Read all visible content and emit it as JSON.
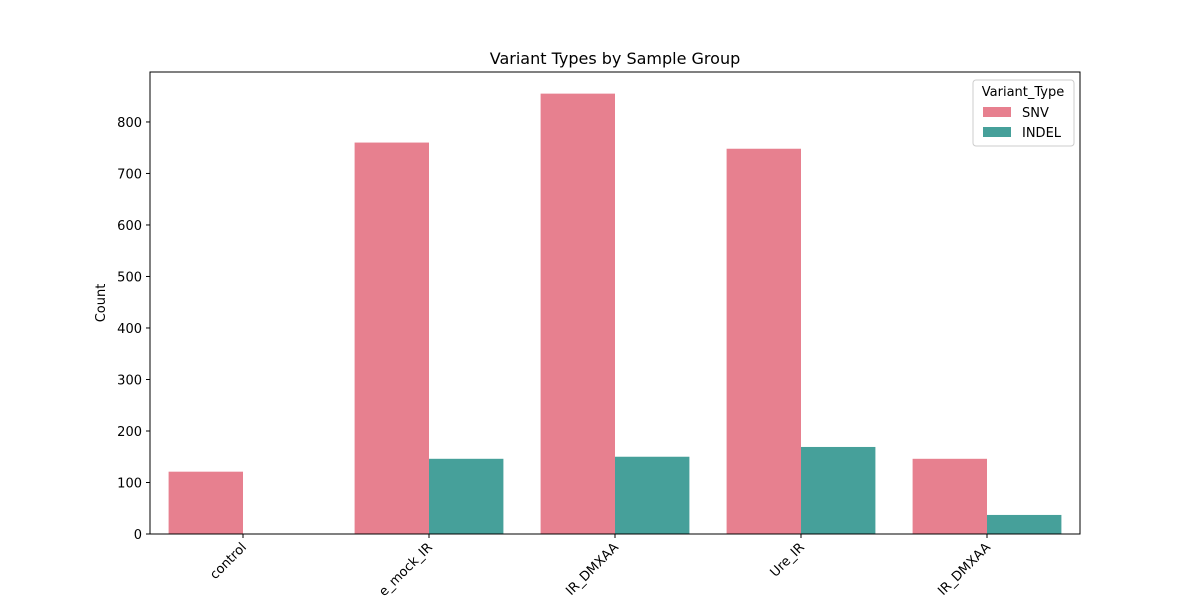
{
  "chart_data": {
    "type": "bar",
    "title": "Variant Types by Sample Group",
    "xlabel": "",
    "ylabel": "Count",
    "categories": [
      "control",
      "Ure_mock_IR",
      "Ure_IR_DMXAA",
      "Ure_IR",
      "Ure_IR_DMXAA"
    ],
    "visible_category_labels": [
      "control",
      "e_mock_IR",
      "IR_DMXAA",
      "Ure_IR",
      "IR_DMXAA"
    ],
    "series": [
      {
        "name": "SNV",
        "color": "#e7808f",
        "values": [
          121,
          760,
          855,
          748,
          146
        ]
      },
      {
        "name": "INDEL",
        "color": "#46a09a",
        "values": [
          0,
          146,
          150,
          169,
          37
        ]
      }
    ],
    "ylim": [
      0,
      897
    ],
    "yticks": [
      0,
      100,
      200,
      300,
      400,
      500,
      600,
      700,
      800
    ],
    "legend": {
      "title": "Variant_Type",
      "position": "top-right"
    },
    "grid": false
  }
}
